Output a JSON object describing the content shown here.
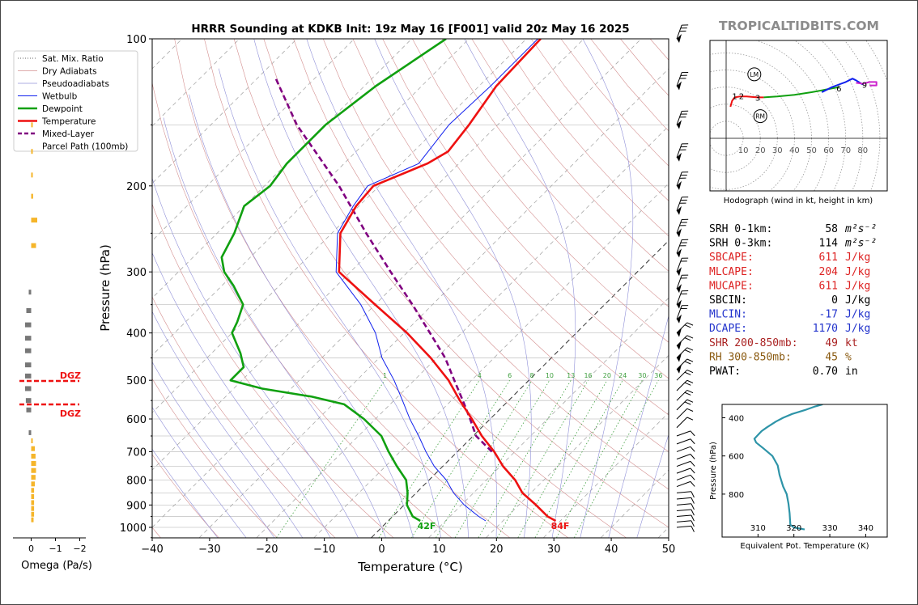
{
  "title": "HRRR Sounding at KDKB Init: 19z May 16 [F001] valid 20z May 16 2025",
  "watermark": "TROPICALTIDBITS.COM",
  "colors": {
    "temperature": "#ee1111",
    "dewpoint": "#10a010",
    "wetbulb": "#1020ee",
    "parcel": "#800080",
    "dry_adiabat": "#d49090",
    "moist_adiabat": "#9090d8",
    "mixing_ratio": "#40a040",
    "omega_up": "#f5b52a",
    "omega_down": "#777777",
    "theta_e": "#2e94a8",
    "red_param": "#dd2222",
    "blue_param": "#2233cc",
    "brown_param": "#8a5a10"
  },
  "main_chart": {
    "xlabel": "Temperature (°C)",
    "ylabel": "Pressure (hPa)",
    "x_ticks": [
      "−40",
      "−30",
      "−20",
      "−10",
      "0",
      "10",
      "20",
      "30",
      "40",
      "50"
    ],
    "y_ticks": [
      "100",
      "200",
      "300",
      "400",
      "500",
      "600",
      "700",
      "800",
      "900",
      "1000"
    ],
    "mixing_ratio_labels": [
      "1",
      "4",
      "6",
      "8",
      "10",
      "13",
      "16",
      "20",
      "24",
      "30",
      "36"
    ],
    "surface_temp_label": "84F",
    "surface_dew_label": "42F",
    "dgz_label": "DGZ"
  },
  "legend": {
    "items": [
      {
        "label": "Sat. Mix. Ratio",
        "style": "dotted",
        "color": "#666666"
      },
      {
        "label": "Dry Adiabats",
        "style": "solid-thin",
        "color": "#d49090"
      },
      {
        "label": "Pseudoadiabats",
        "style": "solid-thin",
        "color": "#9090d8"
      },
      {
        "label": "Wetbulb",
        "style": "solid",
        "color": "#1020ee"
      },
      {
        "label": "Dewpoint",
        "style": "solid-thick",
        "color": "#10a010"
      },
      {
        "label": "Temperature",
        "style": "solid-thick",
        "color": "#ee1111"
      },
      {
        "label": "Mixed-Layer",
        "style": "dashed",
        "color": "#800080"
      },
      {
        "label": "Parcel Path (100mb)",
        "style": "none",
        "color": "#800080"
      }
    ]
  },
  "omega": {
    "xlabel": "Omega (Pa/s)",
    "ticks": [
      "0",
      "−1",
      "−2"
    ]
  },
  "hodograph": {
    "caption": "Hodograph (wind in kt, height in km)",
    "ring_labels": [
      "10",
      "20",
      "30",
      "40",
      "50",
      "60",
      "70",
      "80"
    ],
    "height_labels": [
      "1",
      "2",
      "3",
      "6",
      "9"
    ],
    "storm_labels": [
      "LM",
      "RM"
    ]
  },
  "params": [
    {
      "name": "SRH 0-1km:",
      "value": "58",
      "unit": "m²s⁻²",
      "color": "#000000"
    },
    {
      "name": "SRH 0-3km:",
      "value": "114",
      "unit": "m²s⁻²",
      "color": "#000000"
    },
    {
      "name": "SBCAPE:",
      "value": "611",
      "unit": "J/kg",
      "color": "#dd2222"
    },
    {
      "name": "MLCAPE:",
      "value": "204",
      "unit": "J/kg",
      "color": "#dd2222"
    },
    {
      "name": "MUCAPE:",
      "value": "611",
      "unit": "J/kg",
      "color": "#dd2222"
    },
    {
      "name": "SBCIN:",
      "value": "0",
      "unit": "J/kg",
      "color": "#000000"
    },
    {
      "name": "MLCIN:",
      "value": "-17",
      "unit": "J/kg",
      "color": "#2233cc"
    },
    {
      "name": "DCAPE:",
      "value": "1170",
      "unit": "J/kg",
      "color": "#2233cc"
    },
    {
      "name": "SHR 200-850mb:",
      "value": "49",
      "unit": "kt",
      "color": "#aa2222"
    },
    {
      "name": "RH 300-850mb:",
      "value": "45",
      "unit": "%",
      "color": "#8a5a10"
    },
    {
      "name": "PWAT:",
      "value": "0.70",
      "unit": "in",
      "color": "#000000"
    }
  ],
  "theta_e_chart": {
    "xlabel": "Equivalent Pot. Temperature (K)",
    "ylabel": "Pressure (hPa)",
    "x_ticks": [
      "310",
      "320",
      "330",
      "340"
    ],
    "y_ticks": [
      "400",
      "600",
      "800"
    ]
  },
  "chart_data": [
    {
      "type": "line",
      "name": "skew-t",
      "title": "HRRR Sounding at KDKB Init: 19z May 16 [F001] valid 20z May 16 2025",
      "xlabel": "Temperature (°C)",
      "ylabel": "Pressure (hPa)",
      "xlim": [
        -40,
        50
      ],
      "ylim": [
        1050,
        100
      ],
      "y_scale": "log",
      "skew": 45,
      "series": [
        {
          "name": "Temperature",
          "pressure": [
            970,
            950,
            900,
            850,
            800,
            750,
            700,
            650,
            600,
            550,
            500,
            450,
            400,
            350,
            300,
            250,
            220,
            200,
            180,
            170,
            150,
            125,
            100
          ],
          "values": [
            29.2,
            27,
            23,
            18.5,
            15,
            10.5,
            6.4,
            1.5,
            -3.2,
            -8.5,
            -14,
            -21,
            -29.5,
            -40,
            -52,
            -58.5,
            -60.5,
            -61,
            -55.5,
            -54,
            -55,
            -57,
            -57.5
          ]
        },
        {
          "name": "Dewpoint",
          "pressure": [
            970,
            950,
            900,
            850,
            800,
            750,
            700,
            650,
            600,
            560,
            540,
            520,
            500,
            470,
            440,
            400,
            380,
            350,
            320,
            300,
            280,
            250,
            220,
            200,
            180,
            150,
            125,
            100
          ],
          "values": [
            5.6,
            3.5,
            0.5,
            -1.5,
            -4,
            -8,
            -12,
            -16,
            -22,
            -28,
            -35,
            -45,
            -52,
            -52,
            -55,
            -60,
            -61,
            -63,
            -68,
            -72,
            -75,
            -77,
            -80,
            -79,
            -80,
            -80,
            -78,
            -74
          ]
        },
        {
          "name": "Wetbulb",
          "pressure": [
            970,
            950,
            900,
            850,
            800,
            750,
            700,
            650,
            600,
            550,
            500,
            450,
            400,
            350,
            300,
            250,
            220,
            200,
            180,
            150,
            125,
            100
          ],
          "values": [
            17,
            15,
            10.5,
            6.5,
            3,
            -1.5,
            -5.5,
            -9.5,
            -14,
            -18.5,
            -23.5,
            -29.5,
            -35,
            -42.5,
            -52.5,
            -59,
            -61,
            -62,
            -57,
            -58.5,
            -58,
            -58
          ]
        },
        {
          "name": "Mixed-Layer Parcel Path (100mb)",
          "pressure": [
            700,
            650,
            600,
            550,
            500,
            450,
            400,
            350,
            300,
            250,
            200,
            150,
            120
          ],
          "values": [
            6,
            0.5,
            -3.5,
            -8,
            -13,
            -18.5,
            -25.5,
            -33.5,
            -43,
            -54,
            -67,
            -85,
            -97
          ]
        }
      ]
    },
    {
      "type": "bar",
      "name": "omega",
      "xlabel": "Omega (Pa/s)",
      "xlim": [
        0.5,
        -2.5
      ],
      "pressure": [
        150,
        170,
        190,
        210,
        235,
        265,
        330,
        360,
        385,
        410,
        435,
        465,
        490,
        520,
        550,
        575,
        640,
        665,
        690,
        715,
        740,
        765,
        790,
        815,
        840,
        865,
        890,
        915,
        940,
        965
      ],
      "values": [
        -0.02,
        -0.02,
        -0.03,
        -0.08,
        -0.25,
        -0.2,
        0.1,
        0.2,
        0.25,
        0.25,
        0.25,
        0.25,
        0.25,
        0.25,
        0.22,
        0.2,
        0.1,
        -0.03,
        -0.15,
        -0.18,
        -0.2,
        -0.2,
        -0.18,
        -0.15,
        -0.12,
        -0.12,
        -0.12,
        -0.12,
        -0.12,
        -0.1
      ]
    },
    {
      "type": "line",
      "name": "theta-e",
      "xlabel": "Equivalent Pot. Temperature (K)",
      "ylabel": "Pressure (hPa)",
      "xlim": [
        300,
        346
      ],
      "ylim": [
        1025,
        330
      ],
      "series": [
        {
          "name": "Equivalent Pot. Temperature",
          "pressure": [
            985,
            975,
            960,
            900,
            850,
            800,
            760,
            700,
            650,
            600,
            560,
            530,
            510,
            490,
            470,
            450,
            420,
            400,
            380,
            360,
            340,
            330
          ],
          "values": [
            323,
            320,
            319,
            318.8,
            318.5,
            318,
            317,
            316,
            315.5,
            314,
            311.5,
            309.5,
            309,
            310,
            311,
            312.5,
            315,
            317,
            319.5,
            323,
            326,
            328
          ]
        }
      ]
    },
    {
      "type": "line",
      "name": "hodograph",
      "xlabel": "",
      "ylabel": "",
      "xlim": [
        -10,
        92
      ],
      "ylim": [
        -30,
        55
      ],
      "series": [
        {
          "name": "0-1 km",
          "color": "#ee1111",
          "u": [
            2.5,
            3.5,
            5
          ],
          "v": [
            18.5,
            22,
            24
          ]
        },
        {
          "name": "1-3 km",
          "color": "#ee1111",
          "u": [
            5,
            8,
            12,
            18,
            22
          ],
          "v": [
            24,
            24.5,
            24.5,
            24,
            24
          ]
        },
        {
          "name": "3-6 km",
          "color": "#10a010",
          "u": [
            22,
            30,
            40,
            50,
            58,
            66
          ],
          "v": [
            24,
            24.5,
            25.5,
            27,
            28.5,
            30
          ]
        },
        {
          "name": "6-9 km",
          "color": "#1020ee",
          "u": [
            56,
            62,
            66,
            70,
            74,
            76,
            80
          ],
          "v": [
            27,
            30,
            31.5,
            33,
            35,
            34,
            31.5
          ]
        },
        {
          "name": "9+ km",
          "color": "#cc22cc",
          "u": [
            76,
            80,
            84,
            88,
            88,
            84
          ],
          "v": [
            32.5,
            32,
            33,
            33,
            31,
            31
          ]
        }
      ],
      "height_marks": [
        {
          "label": "1",
          "u": 5,
          "v": 25
        },
        {
          "label": "2",
          "u": 9,
          "v": 25
        },
        {
          "label": "3",
          "u": 18.5,
          "v": 24
        },
        {
          "label": "6",
          "u": 66,
          "v": 29.5
        },
        {
          "label": "9",
          "u": 81,
          "v": 31.5
        }
      ],
      "storm_motion": [
        {
          "label": "LM",
          "u": 16.5,
          "v": 37.5
        },
        {
          "label": "RM",
          "u": 20,
          "v": 13
        }
      ]
    }
  ]
}
